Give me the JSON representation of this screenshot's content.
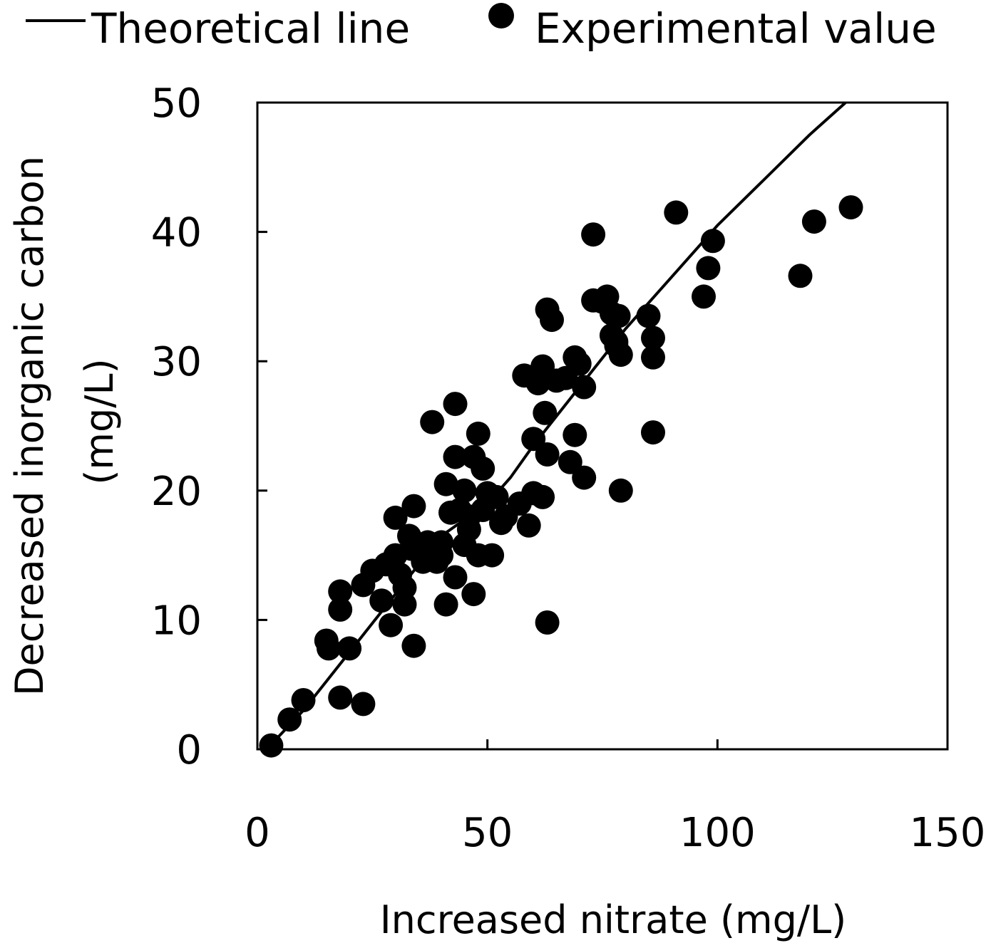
{
  "chart_data": {
    "type": "scatter",
    "xlabel": "Increased nitrate (mg/L)",
    "ylabel_line1": "Decreased inorganic carbon",
    "ylabel_line2": "(mg/L)",
    "xlim": [
      0,
      150
    ],
    "ylim": [
      0,
      50
    ],
    "x_ticks": [
      0,
      50,
      100,
      150
    ],
    "x_tick_labels": [
      "0",
      "50",
      "100",
      "150"
    ],
    "y_ticks": [
      0,
      10,
      20,
      30,
      40,
      50
    ],
    "y_tick_labels": [
      "0",
      "10",
      "20",
      "30",
      "40",
      "50"
    ],
    "grid": false,
    "legend": {
      "position": "top",
      "entries": [
        {
          "label": "Theoretical line",
          "marker": "line"
        },
        {
          "label": "Experimental value",
          "marker": "circle"
        }
      ]
    },
    "series": [
      {
        "name": "Theoretical line",
        "kind": "line",
        "color": "#000000",
        "points": [
          [
            2,
            0
          ],
          [
            10,
            3
          ],
          [
            20,
            7.5
          ],
          [
            30,
            12
          ],
          [
            40,
            16.5
          ],
          [
            50,
            19
          ],
          [
            55,
            21
          ],
          [
            60,
            23.5
          ],
          [
            70,
            28
          ],
          [
            80,
            32.5
          ],
          [
            90,
            36.5
          ],
          [
            100,
            40.5
          ],
          [
            110,
            44
          ],
          [
            120,
            47.5
          ],
          [
            131,
            51
          ]
        ]
      },
      {
        "name": "Experimental value",
        "kind": "scatter",
        "color": "#000000",
        "points": [
          [
            3,
            0.3
          ],
          [
            7,
            2.3
          ],
          [
            10,
            3.8
          ],
          [
            15,
            8.4
          ],
          [
            15.5,
            7.8
          ],
          [
            18,
            12.2
          ],
          [
            18,
            10.8
          ],
          [
            18,
            4
          ],
          [
            20,
            7.8
          ],
          [
            23,
            3.5
          ],
          [
            23,
            12.7
          ],
          [
            25,
            13.8
          ],
          [
            27,
            11.5
          ],
          [
            28,
            14.3
          ],
          [
            29,
            9.6
          ],
          [
            30,
            15
          ],
          [
            30,
            17.9
          ],
          [
            31,
            13.5
          ],
          [
            32,
            12.5
          ],
          [
            32,
            11.2
          ],
          [
            33,
            16.5
          ],
          [
            33.5,
            15.5
          ],
          [
            34,
            8
          ],
          [
            34,
            18.8
          ],
          [
            35,
            15.5
          ],
          [
            36,
            14.5
          ],
          [
            37,
            16
          ],
          [
            38,
            25.3
          ],
          [
            39,
            14.5
          ],
          [
            40,
            16
          ],
          [
            40,
            15
          ],
          [
            41,
            11.2
          ],
          [
            41,
            20.5
          ],
          [
            42,
            18.3
          ],
          [
            43,
            26.7
          ],
          [
            43,
            22.6
          ],
          [
            43,
            13.3
          ],
          [
            44,
            18.5
          ],
          [
            45,
            20
          ],
          [
            45,
            15.8
          ],
          [
            46,
            17
          ],
          [
            46,
            18
          ],
          [
            47,
            22.6
          ],
          [
            47,
            12
          ],
          [
            48,
            15
          ],
          [
            48,
            24.4
          ],
          [
            49,
            21.7
          ],
          [
            49,
            18.5
          ],
          [
            50,
            19.8
          ],
          [
            51,
            15
          ],
          [
            52,
            19.5
          ],
          [
            53,
            17.5
          ],
          [
            54,
            18
          ],
          [
            57,
            19
          ],
          [
            59,
            17.3
          ],
          [
            58,
            28.9
          ],
          [
            60,
            24
          ],
          [
            60,
            19.8
          ],
          [
            61,
            28.3
          ],
          [
            62,
            29.6
          ],
          [
            62,
            19.5
          ],
          [
            62.5,
            26
          ],
          [
            63,
            34
          ],
          [
            63,
            22.8
          ],
          [
            63,
            9.8
          ],
          [
            64,
            33.2
          ],
          [
            65,
            28.5
          ],
          [
            67,
            28.7
          ],
          [
            68,
            22.2
          ],
          [
            69,
            24.3
          ],
          [
            69,
            30.3
          ],
          [
            70,
            29.8
          ],
          [
            71,
            21
          ],
          [
            71,
            28
          ],
          [
            73,
            39.8
          ],
          [
            73,
            34.7
          ],
          [
            75,
            34.6
          ],
          [
            76,
            35
          ],
          [
            77,
            33.7
          ],
          [
            77,
            32
          ],
          [
            78,
            31.5
          ],
          [
            78.5,
            33.5
          ],
          [
            78,
            31.2
          ],
          [
            79,
            30.5
          ],
          [
            79,
            20
          ],
          [
            85,
            33.5
          ],
          [
            86,
            31.8
          ],
          [
            86,
            24.5
          ],
          [
            86,
            30.3
          ],
          [
            91,
            41.5
          ],
          [
            97,
            35
          ],
          [
            98,
            37.2
          ],
          [
            99,
            39.3
          ],
          [
            118,
            36.6
          ],
          [
            121,
            40.8
          ],
          [
            129,
            41.9
          ]
        ]
      }
    ]
  }
}
